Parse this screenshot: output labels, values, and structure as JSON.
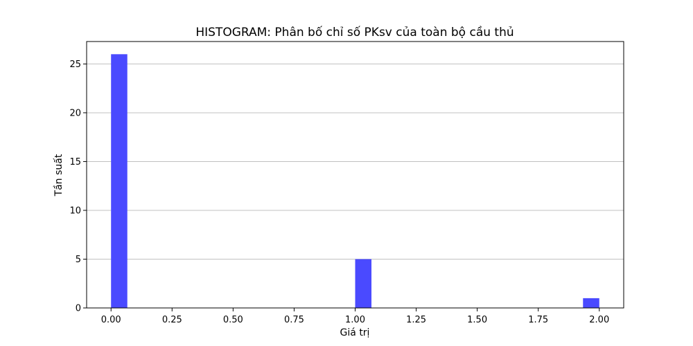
{
  "chart_data": {
    "type": "bar",
    "title": "HISTOGRAM: Phân bố chỉ số PKsv của toàn bộ cầu thủ",
    "xlabel": "Giá trị",
    "ylabel": "Tần suất",
    "bins": [
      {
        "start": 0.0,
        "end": 0.0667,
        "count": 26
      },
      {
        "start": 0.9333,
        "end": 1.0,
        "count": 0
      },
      {
        "start": 1.0,
        "end": 1.0667,
        "count": 5
      },
      {
        "start": 1.9333,
        "end": 2.0,
        "count": 1
      }
    ],
    "x_ticks": [
      "0.00",
      "0.25",
      "0.50",
      "0.75",
      "1.00",
      "1.25",
      "1.50",
      "1.75",
      "2.00"
    ],
    "y_ticks": [
      "0",
      "5",
      "10",
      "15",
      "20",
      "25"
    ],
    "xlim": [
      -0.1,
      2.1
    ],
    "ylim": [
      0,
      27.3
    ],
    "grid": "y",
    "bar_color": "#4a4aff"
  }
}
